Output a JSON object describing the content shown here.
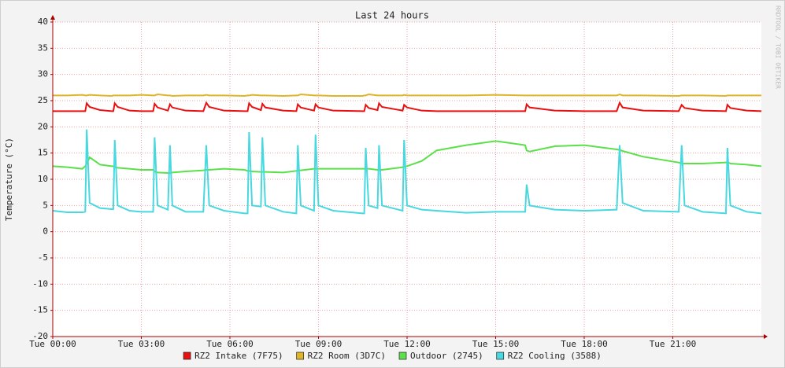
{
  "chart_data": {
    "type": "line",
    "title": "Last 24 hours",
    "y_label": "Temperature (°C)",
    "watermark": "RRDTOOL / TOBI OETIKER",
    "xlim": [
      0,
      24
    ],
    "xticks": [
      {
        "value": 0,
        "label": "Tue 00:00"
      },
      {
        "value": 3,
        "label": "Tue 03:00"
      },
      {
        "value": 6,
        "label": "Tue 06:00"
      },
      {
        "value": 9,
        "label": "Tue 09:00"
      },
      {
        "value": 12,
        "label": "Tue 12:00"
      },
      {
        "value": 15,
        "label": "Tue 15:00"
      },
      {
        "value": 18,
        "label": "Tue 18:00"
      },
      {
        "value": 21,
        "label": "Tue 21:00"
      }
    ],
    "ylim": [
      -20,
      40
    ],
    "yticks": [
      -20,
      -15,
      -10,
      -5,
      0,
      5,
      10,
      15,
      20,
      25,
      30,
      35,
      40
    ],
    "grid": true,
    "x": [
      0,
      0.5,
      1.0,
      1.1,
      1.15,
      1.25,
      1.6,
      2.0,
      2.05,
      2.1,
      2.2,
      2.6,
      3.0,
      3.4,
      3.45,
      3.55,
      3.9,
      3.97,
      4.05,
      4.5,
      5.1,
      5.2,
      5.3,
      5.8,
      6.5,
      6.6,
      6.65,
      6.75,
      7.05,
      7.1,
      7.2,
      7.8,
      8.25,
      8.3,
      8.4,
      8.85,
      8.9,
      9.0,
      9.5,
      10.5,
      10.55,
      10.6,
      10.7,
      11.0,
      11.05,
      11.15,
      11.85,
      11.9,
      12.0,
      12.5,
      13,
      14,
      15,
      16,
      16.05,
      16.15,
      17,
      18,
      19.1,
      19.2,
      19.3,
      20,
      21.2,
      21.3,
      21.4,
      22,
      22.8,
      22.85,
      22.95,
      23.5,
      24
    ],
    "series": [
      {
        "name": "RZ2 Intake (7F75)",
        "color": "#e81010",
        "values": [
          23,
          23,
          23,
          23,
          24.5,
          23.8,
          23.2,
          23,
          23,
          24.5,
          23.8,
          23.1,
          23,
          23,
          24.4,
          23.7,
          23.1,
          24.3,
          23.7,
          23.1,
          23,
          24.6,
          23.8,
          23.1,
          23,
          23,
          24.5,
          23.8,
          23.2,
          24.4,
          23.7,
          23.1,
          23,
          24.3,
          23.7,
          23.1,
          24.3,
          23.7,
          23.1,
          23,
          23,
          24.2,
          23.6,
          23.2,
          24.5,
          23.8,
          23.1,
          24.2,
          23.7,
          23.1,
          23,
          23,
          23,
          23,
          24.3,
          23.7,
          23.1,
          23,
          23,
          24.6,
          23.7,
          23.1,
          23,
          24.2,
          23.6,
          23.1,
          23,
          24.2,
          23.6,
          23.1,
          23
        ]
      },
      {
        "name": "RZ2 Room (3D7C)",
        "color": "#e0b428",
        "values": [
          26,
          26,
          26.1,
          26,
          26,
          26.1,
          26,
          25.9,
          26,
          26,
          26,
          26,
          26.1,
          26,
          26,
          26.2,
          26,
          26,
          25.9,
          26,
          26,
          26.1,
          26,
          26,
          25.9,
          26,
          26,
          26.1,
          26,
          26,
          26,
          25.9,
          26,
          26,
          26.2,
          26,
          26,
          26,
          25.9,
          25.9,
          26,
          26,
          26.2,
          26,
          26,
          26,
          26,
          26.1,
          26,
          26,
          26,
          26,
          26.1,
          26,
          26,
          26,
          26,
          26,
          26,
          26.2,
          26,
          26,
          25.9,
          26,
          26,
          26,
          25.9,
          26,
          26,
          26,
          26
        ]
      },
      {
        "name": "Outdoor (2745)",
        "color": "#5ce04a",
        "values": [
          12.5,
          12.3,
          12,
          12.5,
          13,
          14.2,
          12.8,
          12.5,
          12.5,
          12.3,
          12.2,
          12,
          11.8,
          11.8,
          11.5,
          11.3,
          11.2,
          11.2,
          11.3,
          11.5,
          11.7,
          11.8,
          11.8,
          12,
          11.8,
          11.6,
          11.6,
          11.5,
          11.4,
          11.4,
          11.4,
          11.3,
          11.6,
          11.7,
          11.7,
          12,
          12,
          12,
          12,
          12,
          12,
          12,
          12,
          11.8,
          11.8,
          11.8,
          12.3,
          12.4,
          12.5,
          13.5,
          15.5,
          16.5,
          17.3,
          16.5,
          15.5,
          15.3,
          16.3,
          16.5,
          15.7,
          15.6,
          15.4,
          14.3,
          13.2,
          13,
          13,
          13,
          13.2,
          13.3,
          13,
          12.8,
          12.5
        ]
      },
      {
        "name": "RZ2 Cooling (3588)",
        "color": "#48d8e0",
        "values": [
          4,
          3.7,
          3.7,
          3.8,
          19.5,
          5.5,
          4.5,
          4.3,
          4.3,
          17.5,
          5,
          4,
          3.8,
          3.8,
          18,
          5,
          4.2,
          16.5,
          5,
          3.8,
          3.8,
          16.5,
          5,
          4,
          3.5,
          3.5,
          19,
          5,
          4.8,
          18,
          5,
          3.8,
          3.5,
          16.5,
          5,
          4,
          18.5,
          5,
          4,
          3.5,
          3.5,
          16,
          5,
          4.5,
          16.5,
          5,
          4,
          17.5,
          5,
          4.2,
          4,
          3.6,
          3.8,
          3.8,
          9,
          5,
          4.2,
          4,
          4.2,
          16.5,
          5.5,
          4,
          3.8,
          16.5,
          5,
          3.8,
          3.5,
          16,
          5,
          3.8,
          3.5
        ]
      }
    ]
  }
}
